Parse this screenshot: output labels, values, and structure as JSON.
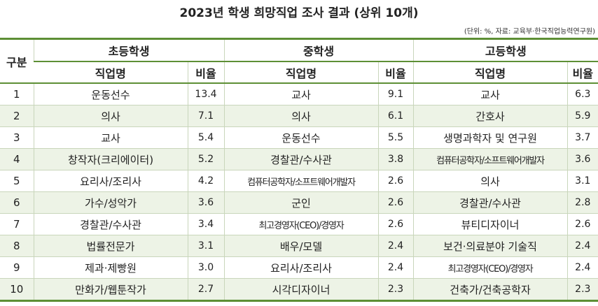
{
  "header": {
    "title": "2023년 학생 희망직업 조사 결과 (상위 10개)",
    "note": "(단위: %, 자료: 교육부·한국직업능력연구원)"
  },
  "table": {
    "corner": "구분",
    "groups": [
      {
        "name": "초등학생",
        "columns": [
          "직업명",
          "비율"
        ]
      },
      {
        "name": "중학생",
        "columns": [
          "직업명",
          "비율"
        ]
      },
      {
        "name": "고등학생",
        "columns": [
          "직업명",
          "비율"
        ]
      }
    ],
    "rows": [
      [
        "1",
        "운동선수",
        "13.4",
        "교사",
        "9.1",
        "교사",
        "6.3"
      ],
      [
        "2",
        "의사",
        "7.1",
        "의사",
        "6.1",
        "간호사",
        "5.9"
      ],
      [
        "3",
        "교사",
        "5.4",
        "운동선수",
        "5.5",
        "생명과학자 및 연구원",
        "3.7"
      ],
      [
        "4",
        "창작자(크리에이터)",
        "5.2",
        "경찰관/수사관",
        "3.8",
        "컴퓨터공학자/소프트웨어개발자",
        "3.6"
      ],
      [
        "5",
        "요리사/조리사",
        "4.2",
        "컴퓨터공학자/소프트웨어개발자",
        "2.6",
        "의사",
        "3.1"
      ],
      [
        "6",
        "가수/성악가",
        "3.6",
        "군인",
        "2.6",
        "경찰관/수사관",
        "2.8"
      ],
      [
        "7",
        "경찰관/수사관",
        "3.4",
        "최고경영자(CEO)/경영자",
        "2.6",
        "뷰티디자이너",
        "2.6"
      ],
      [
        "8",
        "법률전문가",
        "3.1",
        "배우/모델",
        "2.4",
        "보건·의료분야 기술직",
        "2.4"
      ],
      [
        "9",
        "제과·제빵원",
        "3.0",
        "요리사/조리사",
        "2.4",
        "최고경영자(CEO)/경영자",
        "2.4"
      ],
      [
        "10",
        "만화가/웹툰작가",
        "2.7",
        "시각디자이너",
        "2.3",
        "건축가/건축공학자",
        "2.3"
      ]
    ]
  }
}
